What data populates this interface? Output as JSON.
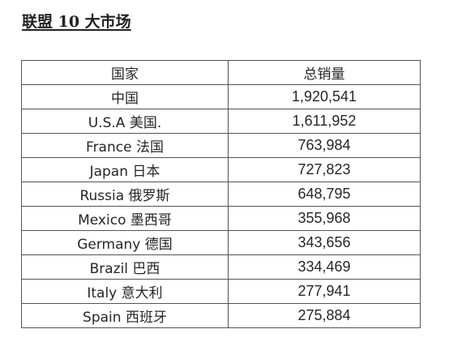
{
  "document": {
    "title": "联盟 10 大市场"
  },
  "table": {
    "headers": [
      "国家",
      "总销量"
    ],
    "rows": [
      {
        "country": "中国",
        "sales": "1,920,541"
      },
      {
        "country": "U.S.A 美国.",
        "sales": "1,611,952"
      },
      {
        "country": "France 法国",
        "sales": "763,984"
      },
      {
        "country": "Japan 日本",
        "sales": "727,823"
      },
      {
        "country": "Russia 俄罗斯",
        "sales": "648,795"
      },
      {
        "country": "Mexico 墨西哥",
        "sales": "355,968"
      },
      {
        "country": "Germany 德国",
        "sales": "343,656"
      },
      {
        "country": "Brazil 巴西",
        "sales": "334,469"
      },
      {
        "country": "Italy 意大利",
        "sales": "277,941"
      },
      {
        "country": "Spain 西班牙",
        "sales": "275,884"
      }
    ]
  }
}
